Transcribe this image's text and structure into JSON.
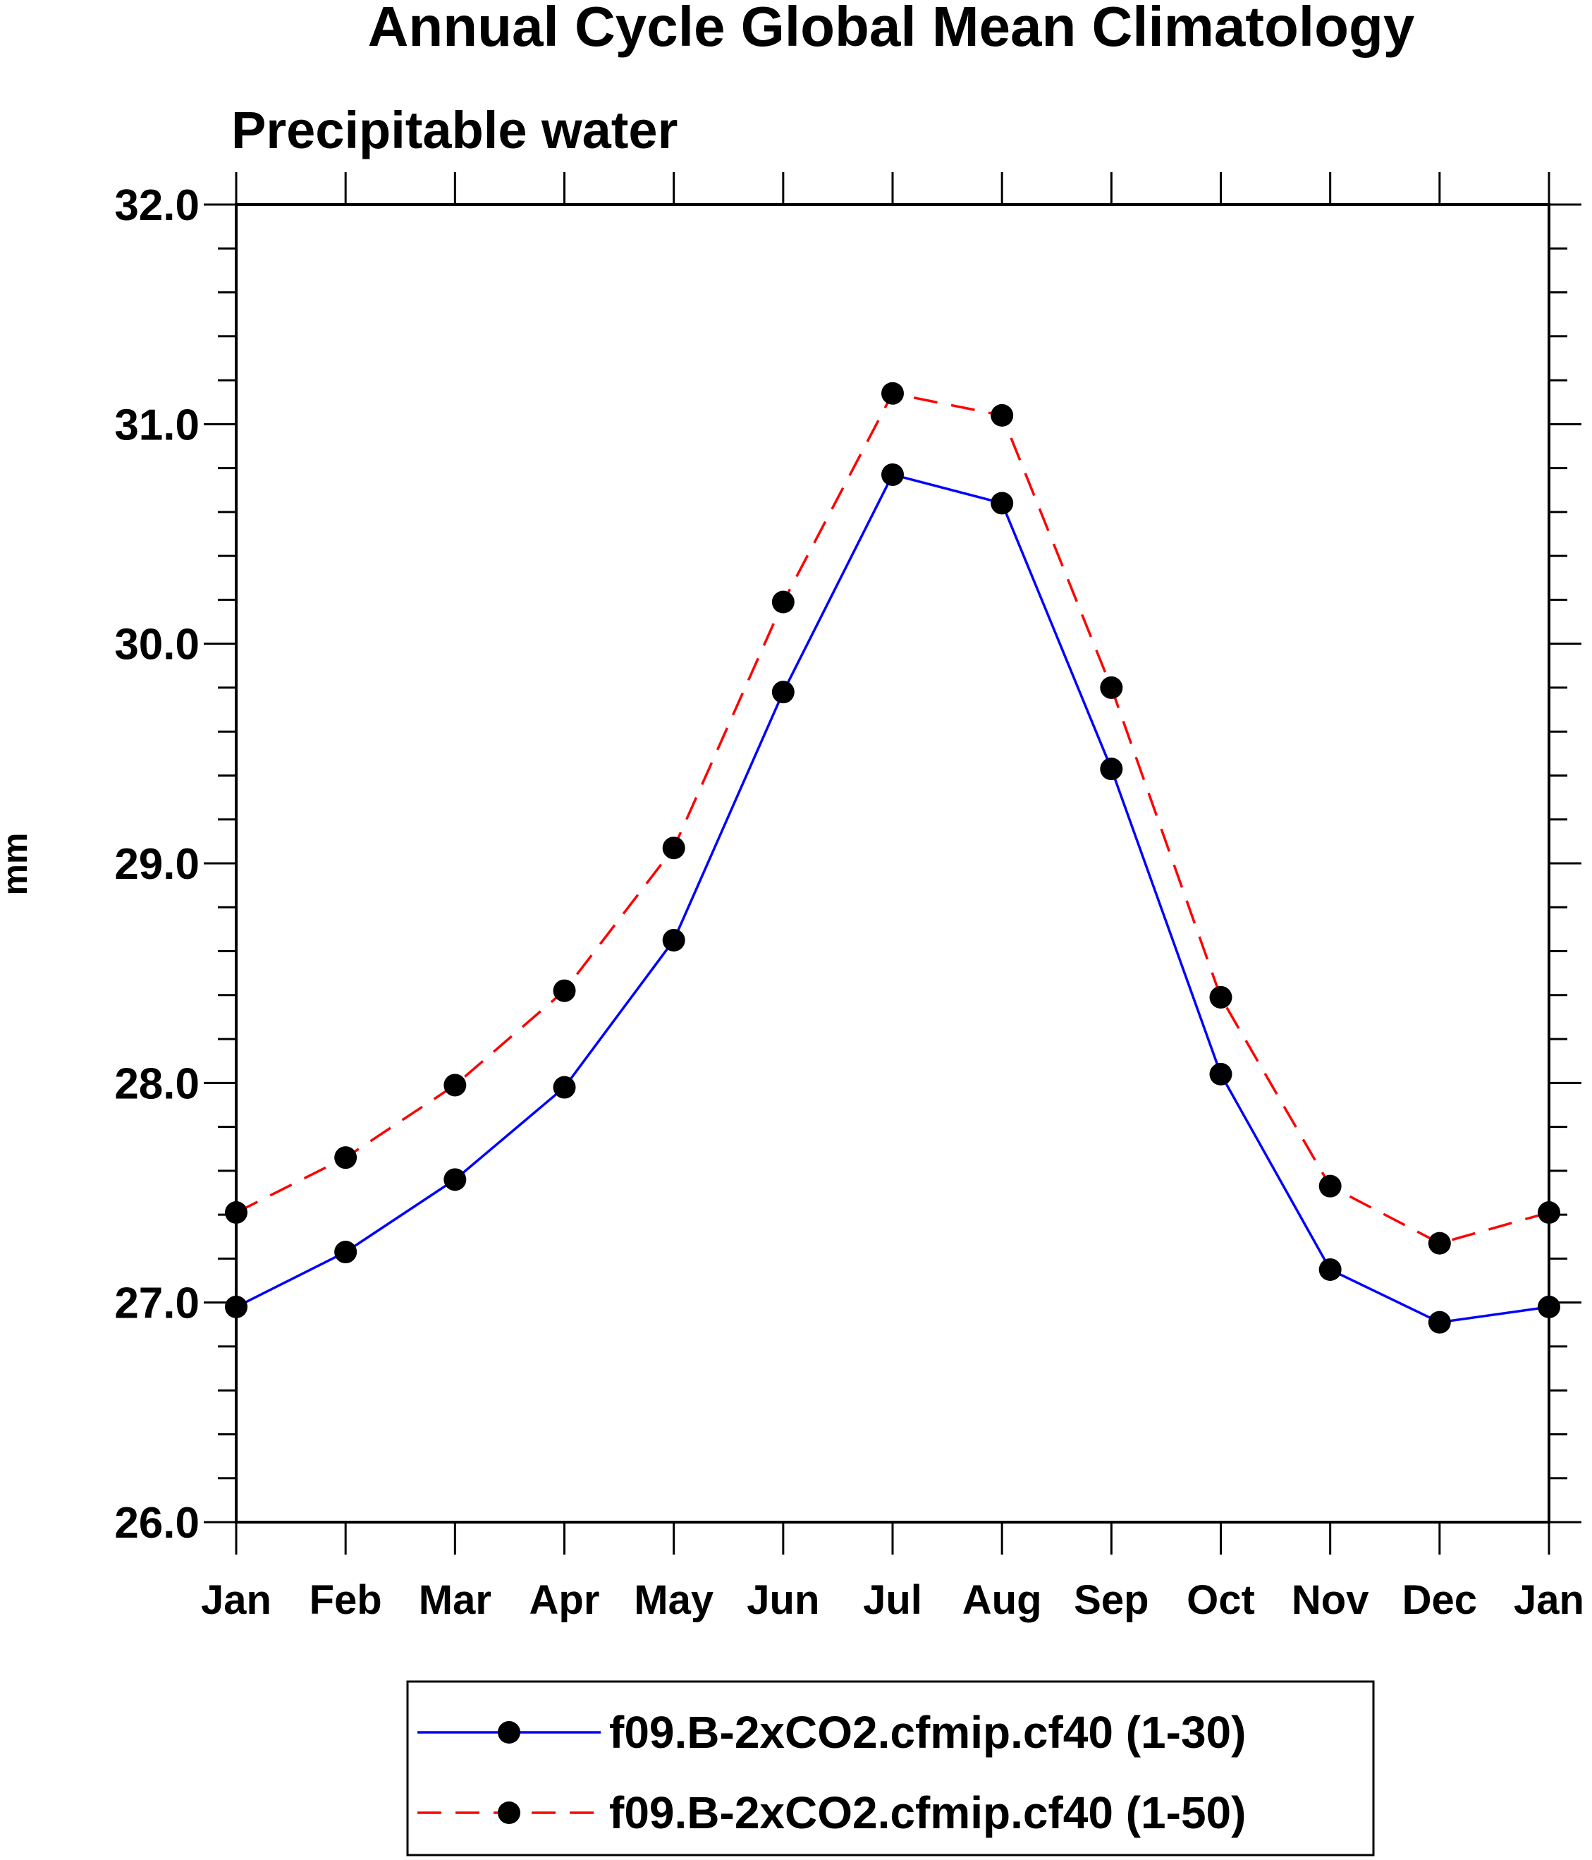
{
  "chart_data": {
    "type": "line",
    "title": "Annual Cycle Global Mean Climatology",
    "subtitle": "Precipitable water",
    "xlabel": "",
    "ylabel": "mm",
    "categories": [
      "Jan",
      "Feb",
      "Mar",
      "Apr",
      "May",
      "Jun",
      "Jul",
      "Aug",
      "Sep",
      "Oct",
      "Nov",
      "Dec",
      "Jan"
    ],
    "ylim": [
      26.0,
      32.0
    ],
    "yticks": [
      "26.0",
      "27.0",
      "28.0",
      "29.0",
      "30.0",
      "31.0",
      "32.0"
    ],
    "grid": false,
    "legend_position": "bottom-center",
    "series": [
      {
        "name": "f09.B-2xCO2.cfmip.cf40 (1-30)",
        "color": "#0000ff",
        "dash": "solid",
        "values": [
          26.98,
          27.23,
          27.56,
          27.98,
          28.65,
          29.78,
          30.77,
          30.64,
          29.43,
          28.04,
          27.15,
          26.91,
          26.98
        ]
      },
      {
        "name": "f09.B-2xCO2.cfmip.cf40 (1-50)",
        "color": "#ff0000",
        "dash": "dashed",
        "values": [
          27.41,
          27.66,
          27.99,
          28.42,
          29.07,
          30.19,
          31.14,
          31.04,
          29.8,
          28.39,
          27.53,
          27.27,
          27.41
        ]
      }
    ]
  }
}
